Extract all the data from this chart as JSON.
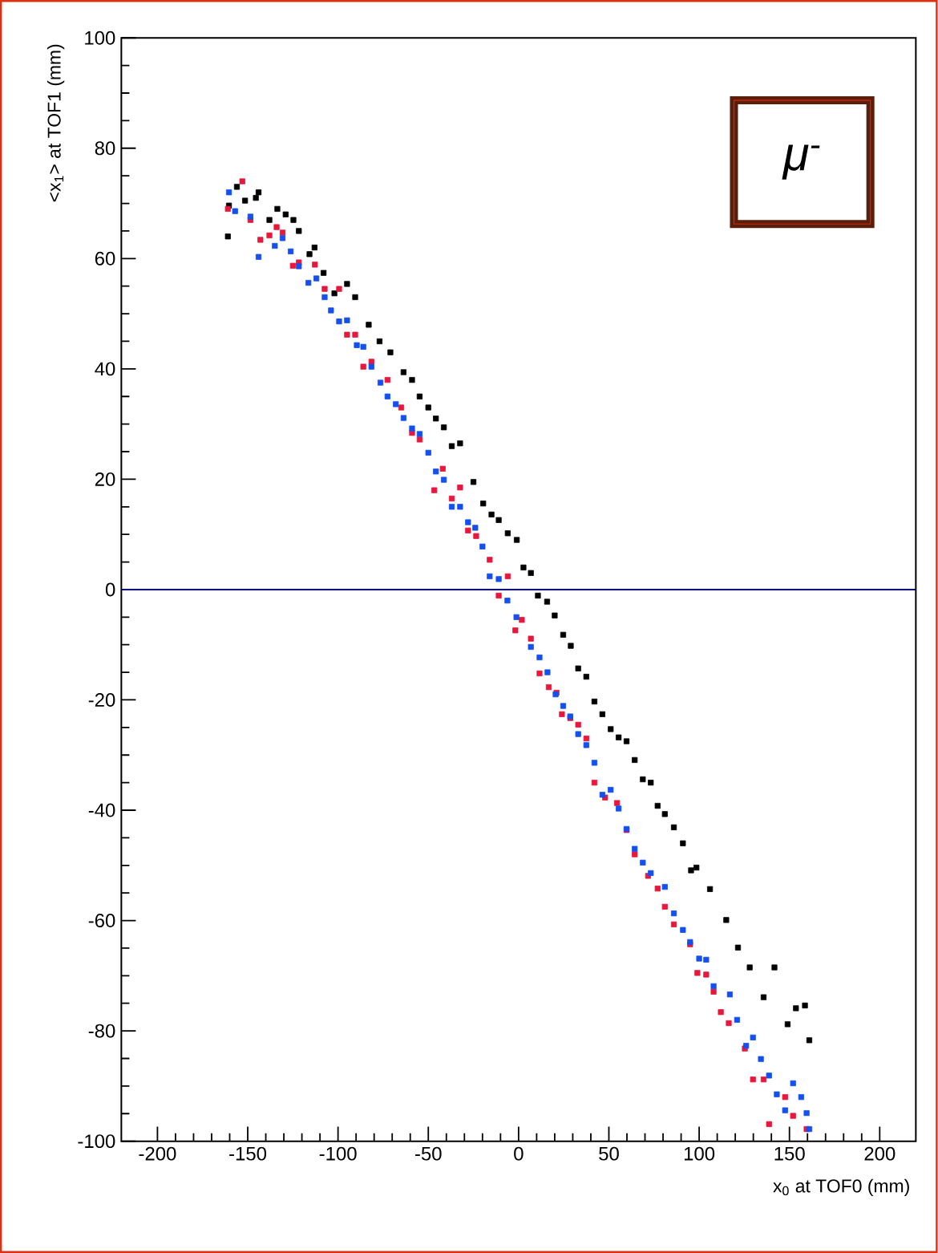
{
  "chart_data": {
    "type": "scatter",
    "xlabel": "x$_{0}$ at TOF0 (mm)",
    "ylabel": "<x$_{1}$> at TOF1 (mm)",
    "annotations": [
      "μ$^{-}$"
    ],
    "xlim": [
      -220,
      220
    ],
    "ylim": [
      -100,
      100
    ],
    "xticks": [
      -200,
      -150,
      -100,
      -50,
      0,
      50,
      100,
      150,
      200
    ],
    "yticks": [
      -100,
      -80,
      -60,
      -40,
      -20,
      0,
      20,
      40,
      60,
      80,
      100
    ],
    "grid": false,
    "marker": "square",
    "ref_lines": [
      {
        "axis": "y",
        "value": 0,
        "color": "#000080"
      }
    ],
    "series": [
      {
        "color": "#000000",
        "x": [
          -161,
          -160.4,
          -156,
          -151.5,
          -145.5,
          -144,
          -138,
          -133.6,
          -129,
          -124.7,
          -121.7,
          -115.8,
          -113,
          -108,
          -102,
          -95,
          -90.5,
          -83,
          -77,
          -71,
          -63.7,
          -59,
          -54.8,
          -50,
          -45.8,
          -41.4,
          -37,
          -32.4,
          -25,
          -19.6,
          -15,
          -11,
          -6,
          -1,
          2.7,
          6.8,
          10.7,
          15.8,
          20,
          24.7,
          28.9,
          33,
          37.5,
          42,
          46.4,
          51,
          55.4,
          59.8,
          64.3,
          68.8,
          73.2,
          77,
          81,
          86,
          91,
          95.5,
          98.5,
          106,
          115,
          121.5,
          128,
          135.7,
          141.7,
          149,
          153.6,
          158.6,
          161
        ],
        "values": [
          64,
          69.6,
          73,
          70.5,
          71,
          72,
          67,
          69,
          68,
          67,
          65,
          60.8,
          62,
          57.4,
          53.7,
          55.4,
          53,
          48,
          45,
          43,
          39.4,
          38,
          35,
          33,
          31,
          29.4,
          26,
          26.5,
          19.5,
          15.6,
          13.6,
          12.6,
          10.2,
          9,
          4,
          3,
          -1.1,
          -2.2,
          -4.7,
          -8.2,
          -10.2,
          -14.3,
          -15.8,
          -20.3,
          -22.6,
          -25.3,
          -26.8,
          -27.5,
          -30.9,
          -34.4,
          -35,
          -39.2,
          -40.7,
          -43.1,
          -46,
          -50.9,
          -50.4,
          -54.3,
          -59.9,
          -64.9,
          -68.5,
          -73.9,
          -68.5,
          -78.8,
          -75.9,
          -75.4,
          -81.7
        ]
      },
      {
        "color": "#e8173c",
        "x": [
          -161,
          -153,
          -148.5,
          -143,
          -138,
          -134,
          -130.7,
          -125,
          -121.7,
          -112.8,
          -107.4,
          -99.4,
          -95,
          -90.5,
          -86,
          -81.5,
          -72.6,
          -65,
          -59,
          -54.8,
          -46.7,
          -42,
          -37,
          -32.4,
          -28,
          -23.5,
          -16,
          -6,
          -11,
          -1.8,
          1.8,
          6.8,
          11.6,
          16.7,
          21,
          24,
          28.6,
          33,
          37.5,
          42,
          47.9,
          54.5,
          59.8,
          64.3,
          71.7,
          77,
          81,
          86,
          95,
          99,
          103.9,
          108,
          112,
          116.4,
          125.3,
          129.8,
          135.7,
          138.7,
          147.6,
          152,
          159.5
        ],
        "values": [
          69,
          74,
          67,
          63.4,
          64.2,
          65.7,
          64.7,
          58.7,
          59.3,
          58.9,
          54.5,
          54.5,
          46.2,
          46.2,
          40.4,
          41.3,
          38,
          33,
          28.4,
          27.2,
          18,
          21.9,
          16.5,
          18.5,
          10.7,
          9.7,
          5.4,
          2.4,
          -1.1,
          -7.4,
          -5.5,
          -8.9,
          -15.2,
          -17.7,
          -18.7,
          -22.6,
          -23.3,
          -24.5,
          -27,
          -35,
          -37.7,
          -38.7,
          -43.6,
          -48,
          -51.9,
          -54.2,
          -57.5,
          -60.7,
          -64.3,
          -69.5,
          -69.8,
          -72.9,
          -76.6,
          -78.6,
          -83.2,
          -88.8,
          -88.8,
          -96.9,
          -92,
          -95.4,
          -97.8
        ]
      },
      {
        "color": "#1450f0",
        "x": [
          -160.4,
          -157,
          -148.5,
          -144,
          -135,
          -130.7,
          -126.2,
          -121.7,
          -116.4,
          -112,
          -107.4,
          -103.9,
          -99.4,
          -95,
          -89.6,
          -86,
          -81.5,
          -76.5,
          -72.6,
          -68,
          -63.7,
          -59,
          -54.8,
          -50,
          -45.8,
          -41.4,
          -37,
          -32.4,
          -28,
          -24,
          -20,
          -16,
          -11,
          -6.2,
          -1.2,
          6.8,
          11.6,
          16,
          20.5,
          24.7,
          28.6,
          33,
          37.5,
          42,
          46.4,
          51,
          55.4,
          59.8,
          64.3,
          68.8,
          73.2,
          81,
          86,
          91,
          95,
          100,
          103.9,
          108,
          117,
          121,
          126,
          129.8,
          134.2,
          138.7,
          143,
          147.6,
          152,
          156.5,
          159.5,
          161
        ],
        "values": [
          72,
          68.6,
          67.6,
          60.3,
          62.3,
          63.7,
          61.3,
          58.6,
          55.6,
          56.4,
          53,
          50.6,
          48.6,
          48.8,
          44.3,
          44,
          40.4,
          37.5,
          35,
          33.6,
          31.1,
          29.2,
          28.2,
          24.8,
          21.4,
          19.9,
          15,
          15,
          12.2,
          11.2,
          7.8,
          2.4,
          1.9,
          -2,
          -5,
          -10.4,
          -12.3,
          -15,
          -19,
          -21.1,
          -23,
          -26.2,
          -28.2,
          -31.4,
          -37.2,
          -36.3,
          -39.7,
          -43.4,
          -47,
          -49.5,
          -51.4,
          -53.9,
          -58.7,
          -61.7,
          -63.9,
          -66.9,
          -67.1,
          -71.9,
          -73.4,
          -78,
          -82.7,
          -81.2,
          -85.1,
          -88.1,
          -91.5,
          -94.4,
          -89.5,
          -92,
          -94.9,
          -97.8
        ]
      }
    ]
  }
}
